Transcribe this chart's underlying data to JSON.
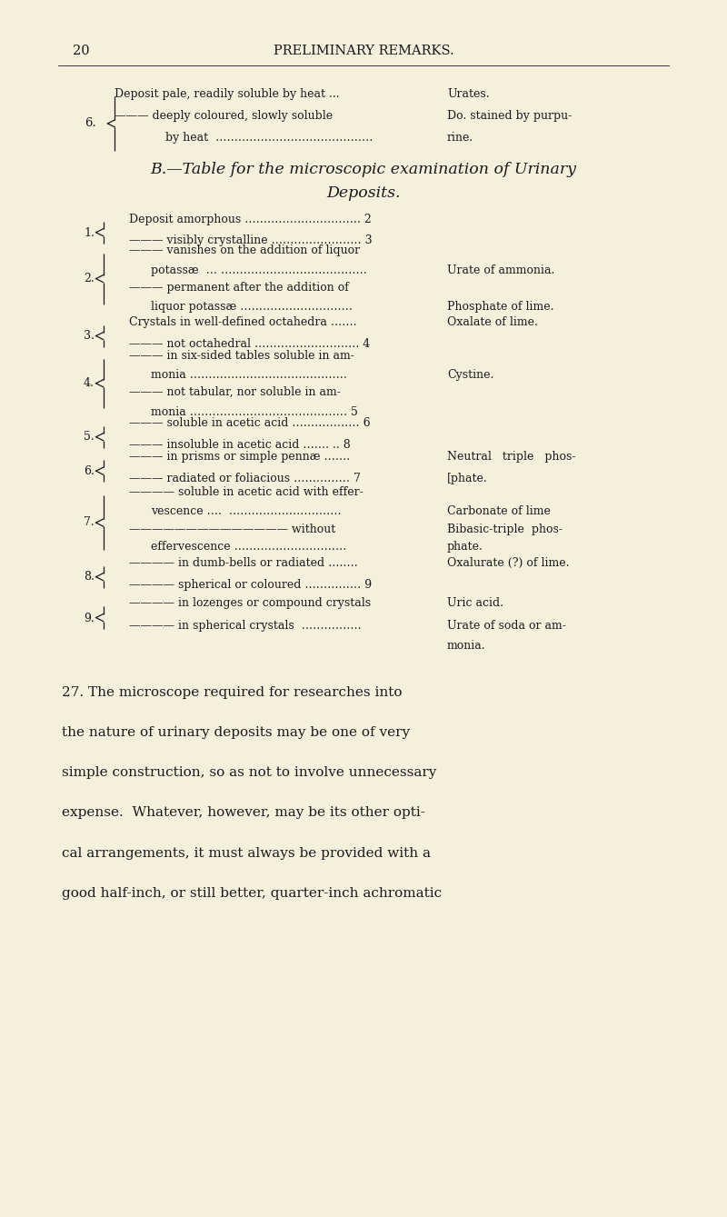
{
  "bg_color": "#f5f0dc",
  "text_color": "#1a1a1a",
  "page_number": "20",
  "header": "PRELIMINARY REMARKS.",
  "italic_title": "B.—Table for the microscopic examination of Urinary",
  "italic_title2": "Deposits.",
  "para_lines": [
    "27. The microscope required for researches into",
    "the nature of urinary deposits may be one of very",
    "simple construction, so as not to involve unnecessary",
    "expense.  Whatever, however, may be its other opti-",
    "cal arrangements, it must always be provided with a",
    "good half-inch, or still better, quarter-inch achromatic"
  ]
}
